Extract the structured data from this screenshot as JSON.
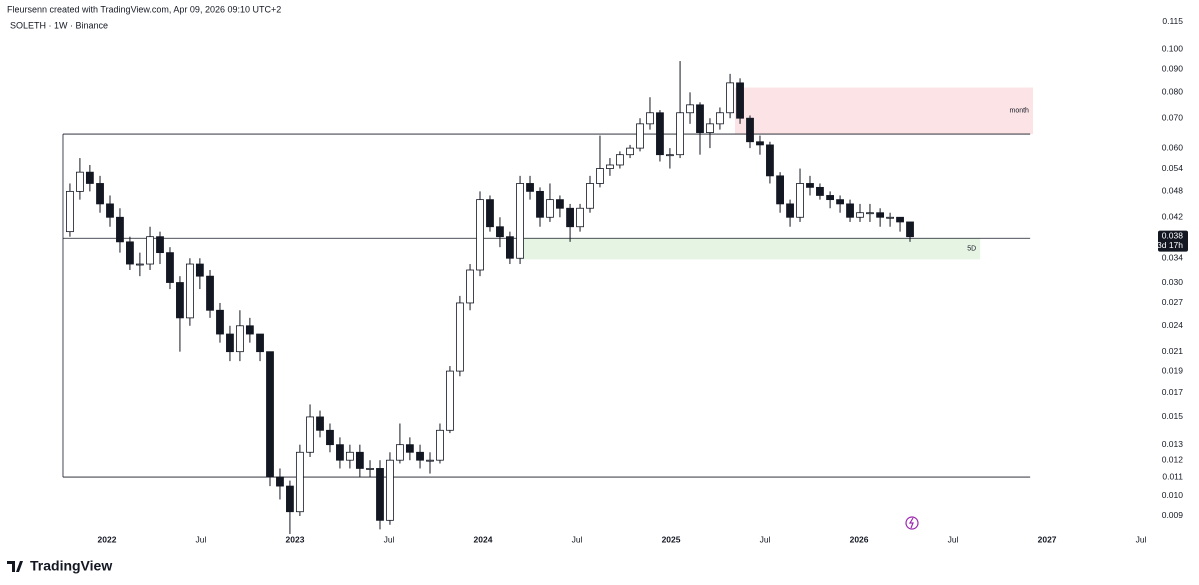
{
  "header": {
    "credit": "Fleursenn created with TradingView.com, Apr 09, 2026 09:10 UTC+2",
    "symbol": "SOLETH · 1W · Binance"
  },
  "footer": {
    "brand": "TradingView"
  },
  "chart_data": {
    "type": "candlestick",
    "log_scale": true,
    "xlim": [
      2021.431,
      2027.574
    ],
    "xticks": [
      {
        "value": 2022,
        "label": "2022"
      },
      {
        "value": 2022.5,
        "label": "Jul"
      },
      {
        "value": 2023,
        "label": "2023"
      },
      {
        "value": 2023.5,
        "label": "Jul"
      },
      {
        "value": 2024,
        "label": "2024"
      },
      {
        "value": 2024.5,
        "label": "Jul"
      },
      {
        "value": 2025,
        "label": "2025"
      },
      {
        "value": 2025.5,
        "label": "Jul"
      },
      {
        "value": 2026,
        "label": "2026"
      },
      {
        "value": 2026.5,
        "label": "Jul"
      },
      {
        "value": 2027,
        "label": "2027"
      },
      {
        "value": 2027.5,
        "label": "Jul"
      }
    ],
    "ylim": [
      0.00763,
      0.1192
    ],
    "yticks": [
      0.115,
      {
        "value": 0.1,
        "label": "0.100"
      },
      {
        "value": 0.09,
        "label": "0.090"
      },
      {
        "value": 0.08,
        "label": "0.080"
      },
      {
        "value": 0.07,
        "label": "0.070"
      },
      {
        "value": 0.06,
        "label": "0.060"
      },
      0.054,
      0.048,
      0.042,
      0.034,
      {
        "value": 0.03,
        "label": "0.030"
      },
      0.027,
      0.024,
      0.021,
      0.019,
      0.017,
      0.015,
      0.013,
      0.012,
      0.011,
      {
        "value": 0.01,
        "label": "0.010"
      },
      0.009
    ],
    "up_color": "#ffffff",
    "down_color": "#131722",
    "outline_color": "#131722",
    "x": [
      2021.803,
      2021.856,
      2021.909,
      2021.963,
      2022.016,
      2022.069,
      2022.122,
      2022.175,
      2022.229,
      2022.282,
      2022.335,
      2022.388,
      2022.441,
      2022.494,
      2022.548,
      2022.601,
      2022.654,
      2022.707,
      2022.76,
      2022.814,
      2022.867,
      2022.92,
      2022.973,
      2023.026,
      2023.08,
      2023.133,
      2023.186,
      2023.239,
      2023.292,
      2023.345,
      2023.399,
      2023.452,
      2023.505,
      2023.558,
      2023.611,
      2023.665,
      2023.718,
      2023.771,
      2023.824,
      2023.877,
      2023.931,
      2023.984,
      2024.037,
      2024.09,
      2024.143,
      2024.197,
      2024.25,
      2024.303,
      2024.356,
      2024.409,
      2024.463,
      2024.516,
      2024.569,
      2024.622,
      2024.675,
      2024.728,
      2024.782,
      2024.835,
      2024.888,
      2024.941,
      2024.994,
      2025.048,
      2025.101,
      2025.154,
      2025.207,
      2025.26,
      2025.314,
      2025.367,
      2025.42,
      2025.473,
      2025.526,
      2025.58,
      2025.633,
      2025.686,
      2025.739,
      2025.792,
      2025.846,
      2025.899,
      2025.952,
      2026.005,
      2026.058,
      2026.112,
      2026.165,
      2026.218,
      2026.271
    ],
    "open": [
      0.039,
      0.048,
      0.053,
      0.05,
      0.045,
      0.042,
      0.037,
      0.033,
      0.033,
      0.038,
      0.035,
      0.03,
      0.025,
      0.033,
      0.031,
      0.026,
      0.023,
      0.021,
      0.024,
      0.023,
      0.021,
      0.011,
      0.0105,
      0.0092,
      0.0125,
      0.015,
      0.014,
      0.013,
      0.012,
      0.0125,
      0.0115,
      0.0115,
      0.0088,
      0.012,
      0.013,
      0.0125,
      0.012,
      0.012,
      0.014,
      0.019,
      0.027,
      0.032,
      0.046,
      0.04,
      0.038,
      0.034,
      0.05,
      0.048,
      0.042,
      0.046,
      0.044,
      0.04,
      0.044,
      0.05,
      0.054,
      0.055,
      0.058,
      0.06,
      0.068,
      0.072,
      0.058,
      0.058,
      0.072,
      0.075,
      0.065,
      0.068,
      0.072,
      0.084,
      0.07,
      0.062,
      0.061,
      0.052,
      0.045,
      0.042,
      0.05,
      0.049,
      0.047,
      0.046,
      0.045,
      0.042,
      0.043,
      0.043,
      0.042,
      0.042,
      0.041
    ],
    "high": [
      0.05,
      0.057,
      0.055,
      0.052,
      0.047,
      0.044,
      0.038,
      0.035,
      0.04,
      0.039,
      0.036,
      0.031,
      0.034,
      0.034,
      0.032,
      0.027,
      0.024,
      0.026,
      0.025,
      0.023,
      0.021,
      0.0115,
      0.0108,
      0.013,
      0.016,
      0.0155,
      0.0145,
      0.0135,
      0.013,
      0.013,
      0.012,
      0.012,
      0.0125,
      0.0145,
      0.0135,
      0.013,
      0.0125,
      0.0145,
      0.0195,
      0.028,
      0.033,
      0.048,
      0.047,
      0.042,
      0.039,
      0.052,
      0.052,
      0.049,
      0.05,
      0.047,
      0.045,
      0.045,
      0.052,
      0.064,
      0.057,
      0.059,
      0.061,
      0.07,
      0.078,
      0.073,
      0.06,
      0.094,
      0.08,
      0.076,
      0.07,
      0.074,
      0.088,
      0.086,
      0.071,
      0.064,
      0.062,
      0.053,
      0.046,
      0.054,
      0.052,
      0.05,
      0.048,
      0.047,
      0.046,
      0.045,
      0.045,
      0.044,
      0.043,
      0.042,
      0.041
    ],
    "low": [
      0.038,
      0.046,
      0.048,
      0.043,
      0.04,
      0.035,
      0.032,
      0.031,
      0.032,
      0.033,
      0.029,
      0.021,
      0.024,
      0.029,
      0.025,
      0.022,
      0.02,
      0.02,
      0.022,
      0.02,
      0.0105,
      0.0098,
      0.0082,
      0.009,
      0.0122,
      0.0135,
      0.0125,
      0.0115,
      0.0115,
      0.011,
      0.011,
      0.0084,
      0.0086,
      0.0118,
      0.012,
      0.0115,
      0.0112,
      0.0118,
      0.0138,
      0.0185,
      0.026,
      0.031,
      0.039,
      0.036,
      0.033,
      0.033,
      0.046,
      0.04,
      0.041,
      0.042,
      0.037,
      0.039,
      0.043,
      0.049,
      0.052,
      0.054,
      0.057,
      0.059,
      0.066,
      0.056,
      0.054,
      0.057,
      0.068,
      0.058,
      0.06,
      0.066,
      0.07,
      0.068,
      0.06,
      0.058,
      0.05,
      0.043,
      0.04,
      0.041,
      0.047,
      0.046,
      0.044,
      0.043,
      0.041,
      0.041,
      0.041,
      0.04,
      0.04,
      0.039,
      0.037
    ],
    "close": [
      0.048,
      0.053,
      0.05,
      0.045,
      0.042,
      0.037,
      0.033,
      0.033,
      0.038,
      0.035,
      0.03,
      0.025,
      0.033,
      0.031,
      0.026,
      0.023,
      0.021,
      0.024,
      0.023,
      0.021,
      0.011,
      0.0105,
      0.0092,
      0.0125,
      0.015,
      0.014,
      0.013,
      0.012,
      0.0125,
      0.0115,
      0.0115,
      0.0088,
      0.012,
      0.013,
      0.0125,
      0.012,
      0.012,
      0.014,
      0.019,
      0.027,
      0.032,
      0.046,
      0.04,
      0.038,
      0.034,
      0.05,
      0.048,
      0.042,
      0.046,
      0.044,
      0.04,
      0.044,
      0.05,
      0.054,
      0.055,
      0.058,
      0.06,
      0.068,
      0.072,
      0.058,
      0.058,
      0.072,
      0.075,
      0.065,
      0.068,
      0.072,
      0.084,
      0.07,
      0.062,
      0.061,
      0.052,
      0.045,
      0.042,
      0.05,
      0.049,
      0.047,
      0.046,
      0.045,
      0.042,
      0.043,
      0.043,
      0.042,
      0.042,
      0.041,
      0.038
    ],
    "hlines": [
      {
        "value": 0.0645,
        "x_start": 2021.766,
        "x_end": 2026.91
      },
      {
        "value": 0.0377,
        "x_start": 2021.766,
        "x_end": 2026.91
      },
      {
        "value": 0.011,
        "x_start": 2021.766,
        "x_end": 2026.91
      }
    ],
    "vline": {
      "x": 2021.766,
      "top": 0.0645,
      "bottom": 0.011
    },
    "zones": [
      {
        "label": "month",
        "top": 0.082,
        "bottom": 0.0645,
        "x_start": 2025.34,
        "x_end": 2026.925,
        "color": "#fce4e6"
      },
      {
        "label": "5D",
        "top": 0.0377,
        "bottom": 0.0338,
        "x_start": 2024.197,
        "x_end": 2026.644,
        "color": "#e6f4e4"
      }
    ],
    "last_price": {
      "value": 0.038,
      "countdown": "3d 17h"
    }
  }
}
